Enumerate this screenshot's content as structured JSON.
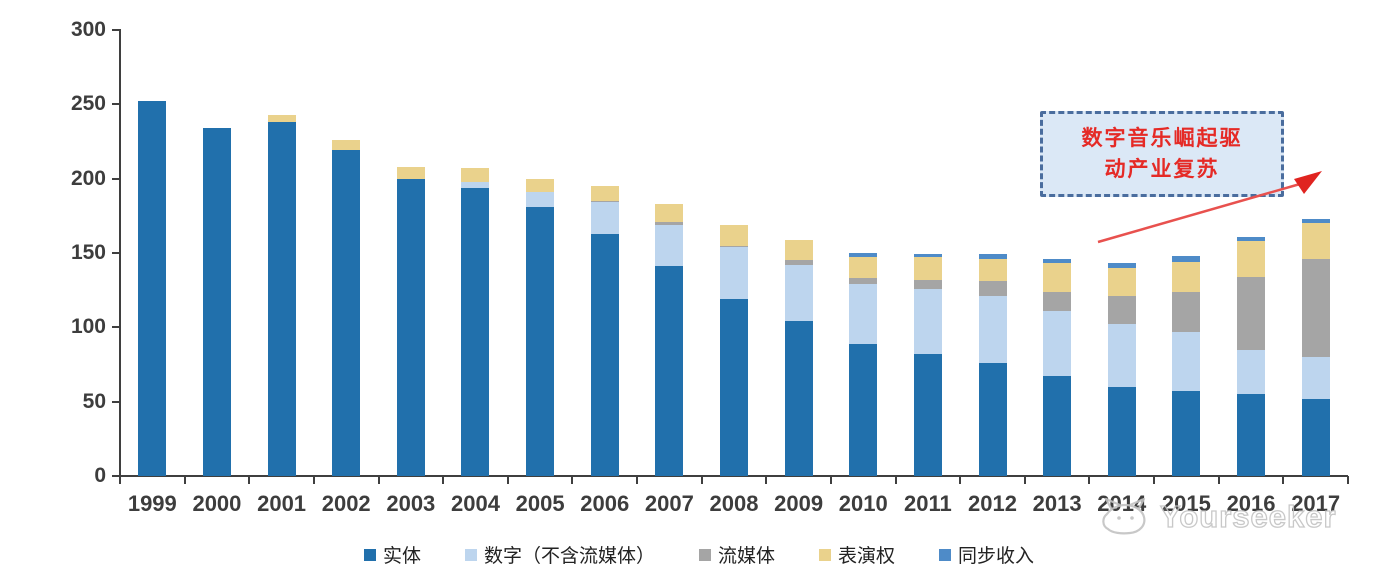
{
  "chart_data": {
    "type": "bar",
    "stacked": true,
    "title": "",
    "xlabel": "",
    "ylabel": "",
    "ylim": [
      0,
      300
    ],
    "yticks": [
      0,
      50,
      100,
      150,
      200,
      250,
      300
    ],
    "grid": false,
    "legend_position": "bottom",
    "categories": [
      "1999",
      "2000",
      "2001",
      "2002",
      "2003",
      "2004",
      "2005",
      "2006",
      "2007",
      "2008",
      "2009",
      "2010",
      "2011",
      "2012",
      "2013",
      "2014",
      "2015",
      "2016",
      "2017"
    ],
    "series": [
      {
        "name": "实体",
        "color": "#2170AC",
        "values": [
          252,
          234,
          238,
          219,
          200,
          194,
          181,
          163,
          141,
          119,
          104,
          89,
          82,
          76,
          67,
          60,
          57,
          55,
          52
        ]
      },
      {
        "name": "数字（不含流媒体）",
        "color": "#BDD5EE",
        "values": [
          0,
          0,
          0,
          0,
          0,
          4,
          10,
          21,
          28,
          35,
          38,
          40,
          44,
          45,
          44,
          42,
          40,
          30,
          28
        ]
      },
      {
        "name": "流媒体",
        "color": "#A5A5A5",
        "values": [
          0,
          0,
          0,
          0,
          0,
          0,
          0,
          1,
          2,
          1,
          3,
          4,
          6,
          10,
          13,
          19,
          27,
          49,
          66
        ]
      },
      {
        "name": "表演权",
        "color": "#EAD28C",
        "values": [
          0,
          0,
          5,
          7,
          8,
          9,
          9,
          10,
          12,
          14,
          14,
          14,
          15,
          15,
          19,
          19,
          20,
          24,
          24
        ]
      },
      {
        "name": "同步收入",
        "color": "#4E8BC8",
        "values": [
          0,
          0,
          0,
          0,
          0,
          0,
          0,
          0,
          0,
          0,
          0,
          3,
          2,
          3,
          3,
          3,
          4,
          3,
          3
        ]
      }
    ]
  },
  "annotation": {
    "line1": "数字音乐崛起驱",
    "line2": "动产业复苏",
    "text_color": "#E52A26",
    "box_fill": "#DBE8F6",
    "box_border": "#4A6D9E",
    "arrow_color": "#E8514E"
  },
  "watermark": {
    "text": "Yourseeker"
  }
}
